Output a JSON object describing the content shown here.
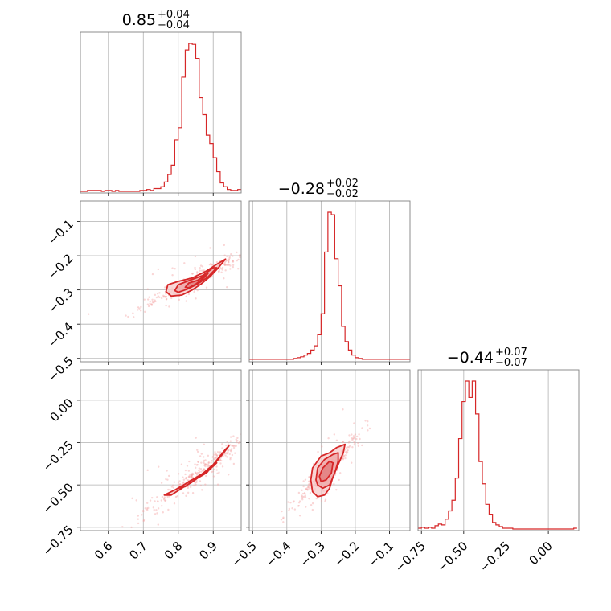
{
  "chart_data": [
    {
      "type": "histogram",
      "panel": "diag-0",
      "title_value": "0.85",
      "title_plus": "+0.04",
      "title_minus": "−0.04",
      "xlim": [
        0.52,
        0.98
      ],
      "xticks": [
        0.6,
        0.7,
        0.8,
        0.9
      ],
      "xtick_labels": [
        "0.6",
        "0.7",
        "0.8",
        "0.9"
      ],
      "show_xticklabels": false,
      "bins_x": [
        0.52,
        0.53,
        0.54,
        0.55,
        0.56,
        0.57,
        0.58,
        0.59,
        0.6,
        0.61,
        0.62,
        0.63,
        0.64,
        0.65,
        0.66,
        0.67,
        0.68,
        0.69,
        0.7,
        0.71,
        0.72,
        0.73,
        0.74,
        0.75,
        0.76,
        0.77,
        0.78,
        0.79,
        0.8,
        0.81,
        0.82,
        0.83,
        0.84,
        0.85,
        0.86,
        0.87,
        0.88,
        0.89,
        0.9,
        0.91,
        0.92,
        0.93,
        0.94,
        0.95,
        0.96,
        0.97,
        0.98
      ],
      "counts": [
        0,
        0,
        1,
        1,
        1,
        1,
        0,
        1,
        1,
        0,
        1,
        0,
        0,
        0,
        0,
        0,
        0,
        1,
        1,
        2,
        1,
        3,
        3,
        5,
        10,
        18,
        28,
        55,
        68,
        122,
        151,
        158,
        157,
        142,
        100,
        82,
        60,
        51,
        36,
        21,
        9,
        5,
        2,
        1,
        1,
        2
      ]
    },
    {
      "type": "scatter-density",
      "panel": "row-1-col-0",
      "xlim": [
        0.52,
        0.98
      ],
      "ylim": [
        -0.51,
        -0.04
      ],
      "xticks": [
        0.6,
        0.7,
        0.8,
        0.9
      ],
      "yticks": [
        -0.1,
        -0.2,
        -0.3,
        -0.4,
        -0.5
      ],
      "ytick_labels": [
        "−0.1",
        "−0.2",
        "−0.3",
        "−0.4",
        "−0.5"
      ],
      "show_xticklabels": false,
      "contours": [
        [
          [
            0.765,
            -0.305
          ],
          [
            0.77,
            -0.285
          ],
          [
            0.8,
            -0.275
          ],
          [
            0.84,
            -0.265
          ],
          [
            0.88,
            -0.245
          ],
          [
            0.91,
            -0.225
          ],
          [
            0.935,
            -0.21
          ],
          [
            0.915,
            -0.235
          ],
          [
            0.89,
            -0.262
          ],
          [
            0.865,
            -0.283
          ],
          [
            0.84,
            -0.3
          ],
          [
            0.81,
            -0.315
          ],
          [
            0.78,
            -0.318
          ]
        ],
        [
          [
            0.79,
            -0.302
          ],
          [
            0.8,
            -0.285
          ],
          [
            0.83,
            -0.273
          ],
          [
            0.87,
            -0.258
          ],
          [
            0.9,
            -0.235
          ],
          [
            0.91,
            -0.235
          ],
          [
            0.885,
            -0.262
          ],
          [
            0.855,
            -0.283
          ],
          [
            0.825,
            -0.298
          ],
          [
            0.8,
            -0.307
          ]
        ],
        [
          [
            0.82,
            -0.292
          ],
          [
            0.83,
            -0.28
          ],
          [
            0.855,
            -0.272
          ],
          [
            0.885,
            -0.252
          ],
          [
            0.875,
            -0.263
          ],
          [
            0.85,
            -0.283
          ],
          [
            0.83,
            -0.294
          ]
        ]
      ]
    },
    {
      "type": "histogram",
      "panel": "diag-1",
      "title_value": "−0.28",
      "title_plus": "+0.02",
      "title_minus": "−0.02",
      "xlim": [
        -0.51,
        -0.04
      ],
      "xticks": [
        -0.5,
        -0.4,
        -0.3,
        -0.2,
        -0.1
      ],
      "show_xticklabels": false,
      "bins_x": [
        -0.51,
        -0.5,
        -0.49,
        -0.48,
        -0.47,
        -0.46,
        -0.45,
        -0.44,
        -0.43,
        -0.42,
        -0.41,
        -0.4,
        -0.39,
        -0.38,
        -0.37,
        -0.36,
        -0.35,
        -0.34,
        -0.33,
        -0.32,
        -0.31,
        -0.3,
        -0.29,
        -0.28,
        -0.27,
        -0.26,
        -0.25,
        -0.24,
        -0.23,
        -0.22,
        -0.21,
        -0.2,
        -0.19,
        -0.18,
        -0.17,
        -0.16,
        -0.15,
        -0.14,
        -0.13,
        -0.12,
        -0.11,
        -0.1,
        -0.09,
        -0.08,
        -0.07,
        -0.06,
        -0.05,
        -0.04
      ],
      "counts": [
        1,
        1,
        1,
        1,
        1,
        1,
        1,
        1,
        1,
        1,
        1,
        1,
        1,
        2,
        3,
        4,
        6,
        8,
        12,
        17,
        30,
        55,
        128,
        175,
        172,
        120,
        88,
        40,
        22,
        12,
        6,
        3,
        2,
        1,
        1,
        1,
        1,
        1,
        1,
        1,
        1,
        1,
        1,
        1,
        1,
        1,
        1
      ]
    },
    {
      "type": "scatter-density",
      "panel": "row-2-col-0",
      "xlim": [
        0.52,
        0.98
      ],
      "ylim": [
        -0.77,
        0.18
      ],
      "xticks": [
        0.6,
        0.7,
        0.8,
        0.9
      ],
      "xtick_labels": [
        "0.6",
        "0.7",
        "0.8",
        "0.9"
      ],
      "yticks": [
        0.0,
        -0.25,
        -0.5,
        -0.75
      ],
      "ytick_labels": [
        "0.00",
        "−0.25",
        "−0.50",
        "−0.75"
      ],
      "contours": [
        [
          [
            0.76,
            -0.56
          ],
          [
            0.79,
            -0.53
          ],
          [
            0.84,
            -0.47
          ],
          [
            0.89,
            -0.41
          ],
          [
            0.93,
            -0.31
          ],
          [
            0.945,
            -0.27
          ],
          [
            0.935,
            -0.29
          ],
          [
            0.9,
            -0.38
          ],
          [
            0.86,
            -0.45
          ],
          [
            0.81,
            -0.52
          ],
          [
            0.78,
            -0.56
          ]
        ],
        [
          [
            0.8,
            -0.52
          ],
          [
            0.84,
            -0.47
          ],
          [
            0.88,
            -0.42
          ],
          [
            0.91,
            -0.37
          ],
          [
            0.9,
            -0.39
          ],
          [
            0.86,
            -0.45
          ],
          [
            0.82,
            -0.51
          ]
        ],
        [
          [
            0.83,
            -0.48
          ],
          [
            0.86,
            -0.45
          ],
          [
            0.885,
            -0.42
          ],
          [
            0.88,
            -0.43
          ],
          [
            0.855,
            -0.46
          ],
          [
            0.835,
            -0.49
          ]
        ]
      ]
    },
    {
      "type": "scatter-density",
      "panel": "row-2-col-1",
      "xlim": [
        -0.51,
        -0.04
      ],
      "ylim": [
        -0.77,
        0.18
      ],
      "xticks": [
        -0.5,
        -0.4,
        -0.3,
        -0.2,
        -0.1
      ],
      "xtick_labels": [
        "−0.5",
        "−0.4",
        "−0.3",
        "−0.2",
        "−0.1"
      ],
      "yticks": [
        0.0,
        -0.25,
        -0.5,
        -0.75
      ],
      "show_yticklabels": false,
      "contours": [
        [
          [
            -0.33,
            -0.47
          ],
          [
            -0.325,
            -0.4
          ],
          [
            -0.3,
            -0.33
          ],
          [
            -0.275,
            -0.31
          ],
          [
            -0.255,
            -0.28
          ],
          [
            -0.23,
            -0.26
          ],
          [
            -0.235,
            -0.31
          ],
          [
            -0.25,
            -0.38
          ],
          [
            -0.265,
            -0.45
          ],
          [
            -0.275,
            -0.52
          ],
          [
            -0.29,
            -0.56
          ],
          [
            -0.31,
            -0.57
          ],
          [
            -0.325,
            -0.54
          ]
        ],
        [
          [
            -0.315,
            -0.47
          ],
          [
            -0.31,
            -0.4
          ],
          [
            -0.29,
            -0.35
          ],
          [
            -0.265,
            -0.32
          ],
          [
            -0.25,
            -0.31
          ],
          [
            -0.25,
            -0.36
          ],
          [
            -0.26,
            -0.43
          ],
          [
            -0.275,
            -0.5
          ],
          [
            -0.295,
            -0.52
          ],
          [
            -0.31,
            -0.5
          ]
        ],
        [
          [
            -0.305,
            -0.45
          ],
          [
            -0.295,
            -0.4
          ],
          [
            -0.275,
            -0.36
          ],
          [
            -0.265,
            -0.37
          ],
          [
            -0.27,
            -0.43
          ],
          [
            -0.285,
            -0.47
          ],
          [
            -0.3,
            -0.48
          ]
        ]
      ]
    },
    {
      "type": "histogram",
      "panel": "diag-2",
      "title_value": "−0.44",
      "title_plus": "+0.07",
      "title_minus": "−0.07",
      "xlim": [
        -0.77,
        0.18
      ],
      "xticks": [
        -0.75,
        -0.5,
        -0.25,
        0.0
      ],
      "xtick_labels": [
        "−0.75",
        "−0.50",
        "−0.25",
        "0.00"
      ],
      "bins_x": [
        -0.77,
        -0.75,
        -0.73,
        -0.71,
        -0.69,
        -0.67,
        -0.65,
        -0.63,
        -0.61,
        -0.59,
        -0.57,
        -0.55,
        -0.53,
        -0.51,
        -0.49,
        -0.47,
        -0.45,
        -0.43,
        -0.41,
        -0.39,
        -0.37,
        -0.35,
        -0.33,
        -0.31,
        -0.29,
        -0.27,
        -0.25,
        -0.23,
        -0.21,
        -0.19,
        -0.17,
        -0.15,
        -0.13,
        -0.11,
        -0.09,
        -0.07,
        -0.05,
        -0.03,
        -0.01,
        0.01,
        0.03,
        0.05,
        0.07,
        0.09,
        0.11,
        0.13,
        0.15,
        0.17
      ],
      "counts": [
        1,
        2,
        1,
        2,
        1,
        4,
        6,
        5,
        12,
        22,
        35,
        62,
        110,
        155,
        180,
        160,
        180,
        140,
        82,
        55,
        30,
        18,
        8,
        5,
        3,
        1,
        1,
        1,
        0,
        0,
        0,
        0,
        0,
        0,
        0,
        0,
        0,
        0,
        0,
        0,
        0,
        0,
        0,
        0,
        0,
        0,
        1
      ]
    }
  ]
}
